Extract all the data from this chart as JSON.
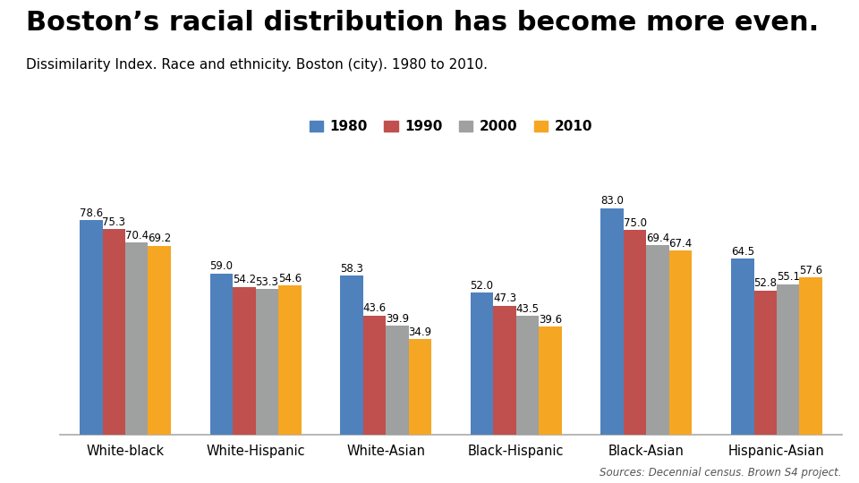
{
  "title": "Boston’s racial distribution has become more even.",
  "subtitle": "Dissimilarity Index. Race and ethnicity. Boston (city). 1980 to 2010.",
  "source": "Sources: Decennial census. Brown S4 project.",
  "categories": [
    "White-black",
    "White-Hispanic",
    "White-Asian",
    "Black-Hispanic",
    "Black-Asian",
    "Hispanic-Asian"
  ],
  "years": [
    "1980",
    "1990",
    "2000",
    "2010"
  ],
  "colors": [
    "#4f81bd",
    "#c0504d",
    "#9fa0a0",
    "#f5a623"
  ],
  "values": {
    "1980": [
      78.6,
      59.0,
      58.3,
      52.0,
      83.0,
      64.5
    ],
    "1990": [
      75.3,
      54.2,
      43.6,
      47.3,
      75.0,
      52.8
    ],
    "2000": [
      70.4,
      53.3,
      39.9,
      43.5,
      69.4,
      55.1
    ],
    "2010": [
      69.2,
      54.6,
      34.9,
      39.6,
      67.4,
      57.6
    ]
  },
  "ylim": [
    0,
    92
  ],
  "bar_width": 0.175,
  "background_color": "#ffffff",
  "title_fontsize": 22,
  "subtitle_fontsize": 11,
  "label_fontsize": 8.5,
  "tick_fontsize": 10.5,
  "source_fontsize": 8.5,
  "legend_fontsize": 11
}
